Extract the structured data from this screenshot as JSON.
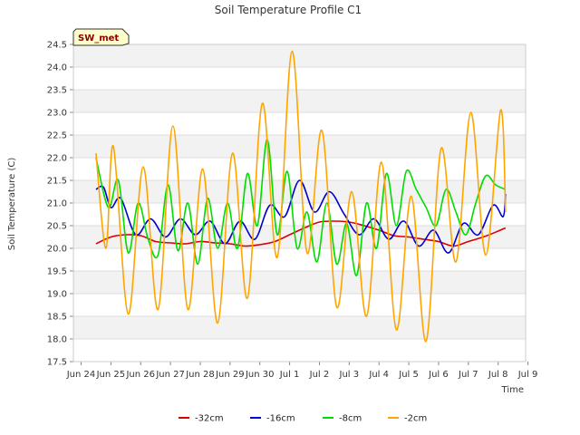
{
  "chart_data": {
    "type": "line",
    "title": "Soil Temperature Profile C1",
    "xlabel": "Time",
    "ylabel": "Soil Temperature (C)",
    "badge": "SW_met",
    "x_range": [
      "Jun 24",
      "Jul 9"
    ],
    "x_ticks": [
      "Jun 24",
      "Jun 25",
      "Jun 26",
      "Jun 27",
      "Jun 28",
      "Jun 29",
      "Jun 30",
      "Jul 1",
      "Jul 2",
      "Jul 3",
      "Jul 4",
      "Jul 5",
      "Jul 6",
      "Jul 7",
      "Jul 8",
      "Jul 9"
    ],
    "ylim": [
      17.5,
      24.5
    ],
    "y_ticks": [
      17.5,
      18.0,
      18.5,
      19.0,
      19.5,
      20.0,
      20.5,
      21.0,
      21.5,
      22.0,
      22.5,
      23.0,
      23.5,
      24.0,
      24.5
    ],
    "y_tick_labels": [
      "17.5",
      "18.0",
      "18.5",
      "19.0",
      "19.5",
      "20.0",
      "20.5",
      "21.0",
      "21.5",
      "22.0",
      "22.5",
      "23.0",
      "23.5",
      "24.0",
      "24.5"
    ],
    "grid": true,
    "legend_position": "bottom",
    "series": [
      {
        "name": "-32cm",
        "color": "#dd0000",
        "x": [
          "Jun 24 12:00",
          "Jun 25 00:00",
          "Jun 25 12:00",
          "Jun 26 00:00",
          "Jun 26 12:00",
          "Jun 27 00:00",
          "Jun 27 12:00",
          "Jun 28 00:00",
          "Jun 28 12:00",
          "Jun 29 00:00",
          "Jun 29 12:00",
          "Jun 30 00:00",
          "Jun 30 12:00",
          "Jul 1 00:00",
          "Jul 1 12:00",
          "Jul 2 00:00",
          "Jul 2 12:00",
          "Jul 3 00:00",
          "Jul 3 12:00",
          "Jul 4 00:00",
          "Jul 4 12:00",
          "Jul 5 00:00",
          "Jul 5 12:00",
          "Jul 6 00:00",
          "Jul 6 12:00",
          "Jul 7 00:00",
          "Jul 7 12:00",
          "Jul 8 00:00",
          "Jul 8 06:00"
        ],
        "y": [
          20.1,
          20.25,
          20.3,
          20.28,
          20.15,
          20.12,
          20.1,
          20.15,
          20.12,
          20.1,
          20.05,
          20.08,
          20.15,
          20.3,
          20.45,
          20.58,
          20.6,
          20.58,
          20.5,
          20.4,
          20.28,
          20.25,
          20.2,
          20.15,
          20.05,
          20.15,
          20.25,
          20.38,
          20.45
        ]
      },
      {
        "name": "-16cm",
        "color": "#0000cc",
        "x": [
          "Jun 24 12:00",
          "Jun 24 18:00",
          "Jun 25 00:00",
          "Jun 25 08:00",
          "Jun 25 20:00",
          "Jun 26 08:00",
          "Jun 26 20:00",
          "Jun 27 08:00",
          "Jun 27 20:00",
          "Jun 28 08:00",
          "Jun 28 20:00",
          "Jun 29 08:00",
          "Jun 29 20:00",
          "Jun 30 08:00",
          "Jun 30 20:00",
          "Jul 1 08:00",
          "Jul 1 20:00",
          "Jul 2 08:00",
          "Jul 2 20:00",
          "Jul 3 08:00",
          "Jul 3 20:00",
          "Jul 4 08:00",
          "Jul 4 20:00",
          "Jul 5 08:00",
          "Jul 5 20:00",
          "Jul 6 08:00",
          "Jul 6 20:00",
          "Jul 7 08:00",
          "Jul 7 20:00",
          "Jul 8 04:00",
          "Jul 8 06:00"
        ],
        "y": [
          21.3,
          21.35,
          20.9,
          21.1,
          20.3,
          20.65,
          20.25,
          20.65,
          20.3,
          20.6,
          20.1,
          20.6,
          20.2,
          20.95,
          20.7,
          21.5,
          20.8,
          21.25,
          20.75,
          20.3,
          20.65,
          20.2,
          20.6,
          20.05,
          20.4,
          19.9,
          20.55,
          20.3,
          20.95,
          20.7,
          21.2
        ]
      },
      {
        "name": "-8cm",
        "color": "#00dd00",
        "x": [
          "Jun 24 12:00",
          "Jun 24 22:00",
          "Jun 25 06:00",
          "Jun 25 14:00",
          "Jun 25 22:00",
          "Jun 26 06:00",
          "Jun 26 14:00",
          "Jun 26 22:00",
          "Jun 27 06:00",
          "Jun 27 14:00",
          "Jun 27 22:00",
          "Jun 28 06:00",
          "Jun 28 14:00",
          "Jun 28 22:00",
          "Jun 29 06:00",
          "Jun 29 14:00",
          "Jun 29 22:00",
          "Jun 30 06:00",
          "Jun 30 14:00",
          "Jun 30 22:00",
          "Jul 1 06:00",
          "Jul 1 14:00",
          "Jul 1 22:00",
          "Jul 2 06:00",
          "Jul 2 14:00",
          "Jul 2 22:00",
          "Jul 3 06:00",
          "Jul 3 14:00",
          "Jul 3 22:00",
          "Jul 4 06:00",
          "Jul 4 14:00",
          "Jul 4 22:00",
          "Jul 5 06:00",
          "Jul 5 14:00",
          "Jul 5 22:00",
          "Jul 6 06:00",
          "Jul 6 14:00",
          "Jul 6 22:00",
          "Jul 7 06:00",
          "Jul 7 14:00",
          "Jul 7 22:00",
          "Jul 8 06:00"
        ],
        "y": [
          22.0,
          20.9,
          21.5,
          19.9,
          21.0,
          20.2,
          19.85,
          21.4,
          19.95,
          21.0,
          19.65,
          21.1,
          20.0,
          21.0,
          20.0,
          21.65,
          20.5,
          22.4,
          20.3,
          21.7,
          20.0,
          20.8,
          19.7,
          21.0,
          19.65,
          20.55,
          19.4,
          21.0,
          20.0,
          21.65,
          20.5,
          21.7,
          21.3,
          20.9,
          20.5,
          21.3,
          20.8,
          20.3,
          21.0,
          21.6,
          21.4,
          21.3
        ]
      },
      {
        "name": "-2cm",
        "color": "#ffa500",
        "x": [
          "Jun 24 12:00",
          "Jun 24 20:00",
          "Jun 25 02:00",
          "Jun 25 14:00",
          "Jun 26 02:00",
          "Jun 26 14:00",
          "Jun 27 02:00",
          "Jun 27 14:00",
          "Jun 28 02:00",
          "Jun 28 14:00",
          "Jun 29 02:00",
          "Jun 29 14:00",
          "Jun 30 02:00",
          "Jun 30 14:00",
          "Jul 1 02:00",
          "Jul 1 14:00",
          "Jul 2 02:00",
          "Jul 2 14:00",
          "Jul 3 02:00",
          "Jul 3 14:00",
          "Jul 4 02:00",
          "Jul 4 14:00",
          "Jul 5 02:00",
          "Jul 5 14:00",
          "Jul 6 02:00",
          "Jul 6 14:00",
          "Jul 7 02:00",
          "Jul 7 14:00",
          "Jul 8 02:00",
          "Jul 8 06:00"
        ],
        "y": [
          22.1,
          20.0,
          22.25,
          18.55,
          21.8,
          18.65,
          22.7,
          18.65,
          21.75,
          18.35,
          22.1,
          18.9,
          23.2,
          19.8,
          24.35,
          19.9,
          22.6,
          18.7,
          21.25,
          18.5,
          21.9,
          18.2,
          21.15,
          17.95,
          22.2,
          19.7,
          23.0,
          19.85,
          23.05,
          20.8
        ]
      }
    ]
  }
}
